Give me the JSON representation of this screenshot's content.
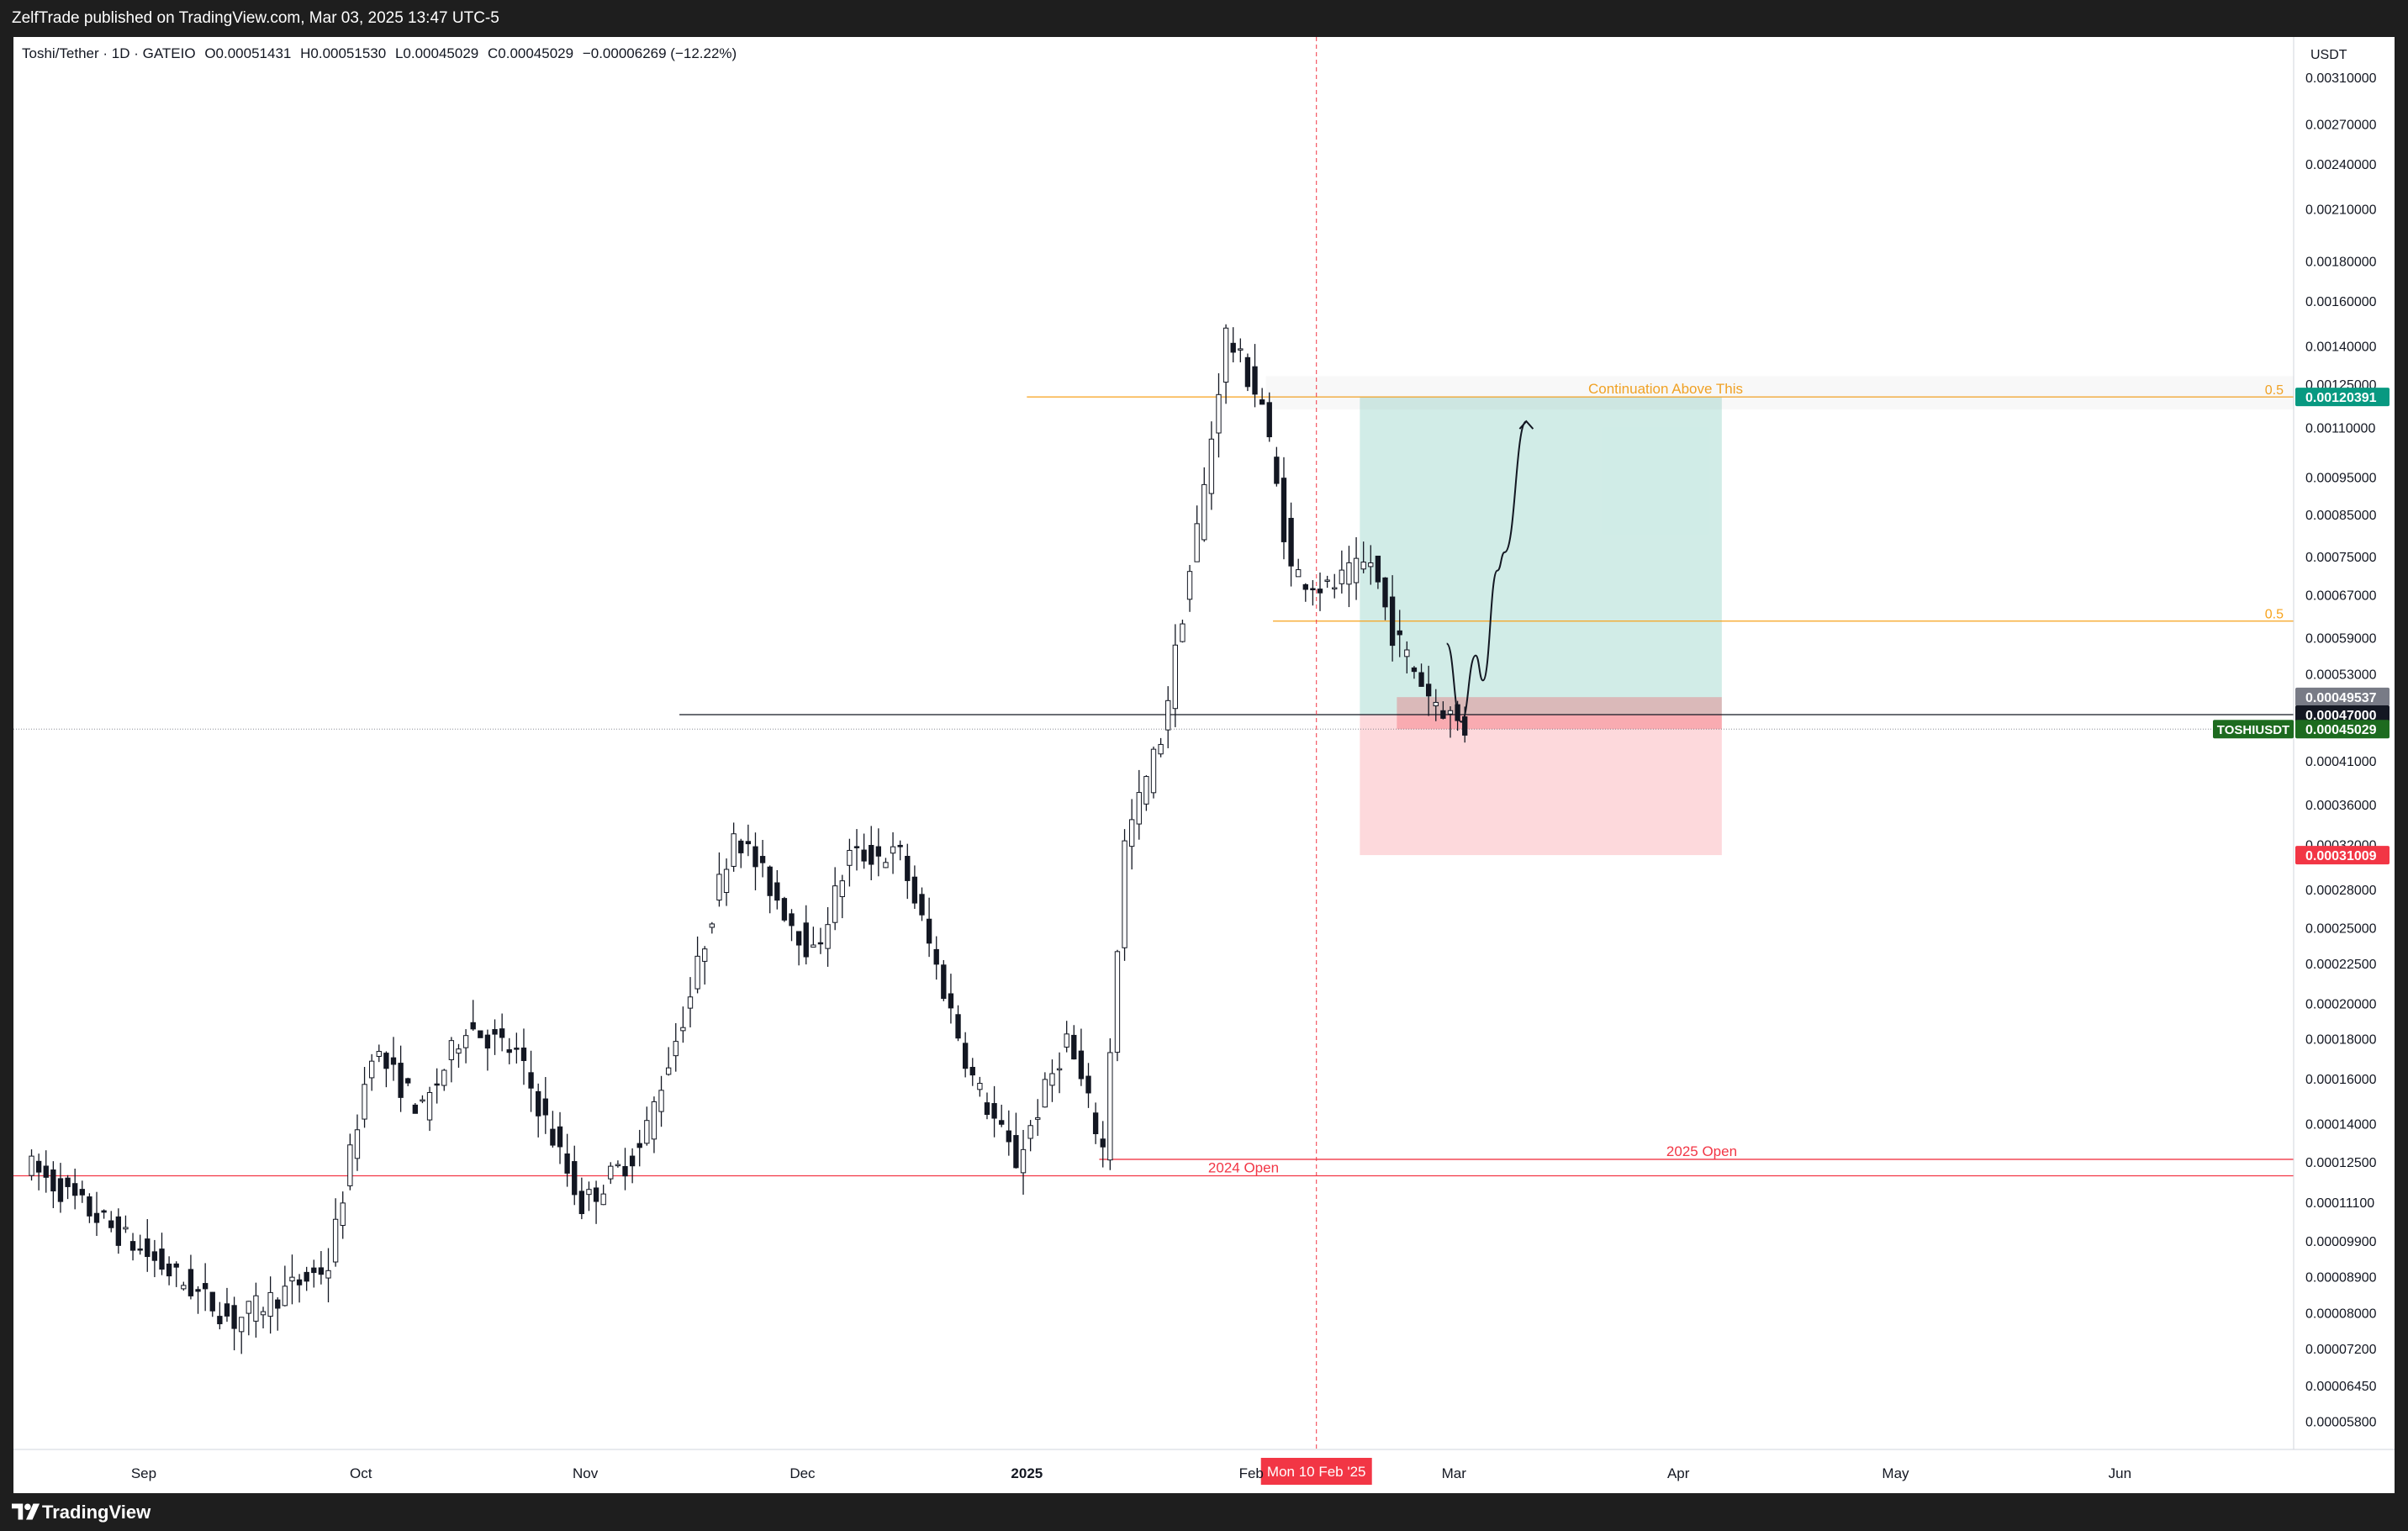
{
  "header": {
    "published": "ZelfTrade published on TradingView.com, Mar 03, 2025 13:47 UTC-5"
  },
  "footer": {
    "brand": "TradingView",
    "logo_icon": "tradingview-logo-icon"
  },
  "legend": {
    "symbol": "Toshi/Tether · 1D · GATEIO",
    "o_label": "O",
    "o": "0.00051431",
    "h_label": "H",
    "h": "0.00051530",
    "l_label": "L",
    "l": "0.00045029",
    "c_label": "C",
    "c": "0.00045029",
    "change": "−0.00006269 (−12.22%)"
  },
  "chart_data": {
    "type": "candlestick",
    "currency": "USDT",
    "scale": "log",
    "ylim": [
      5e-05,
      0.00032
    ],
    "xlim": [
      "2024-08-14",
      "2025-06-25"
    ],
    "x_ticks": [
      {
        "date": "2024-09-01",
        "label": "Sep"
      },
      {
        "date": "2024-10-01",
        "label": "Oct"
      },
      {
        "date": "2024-11-01",
        "label": "Nov"
      },
      {
        "date": "2024-12-01",
        "label": "Dec"
      },
      {
        "date": "2025-01-01",
        "label": "2025",
        "bold": true
      },
      {
        "date": "2025-02-01",
        "label": "Feb"
      },
      {
        "date": "2025-03-01",
        "label": "Mar"
      },
      {
        "date": "2025-04-01",
        "label": "Apr"
      },
      {
        "date": "2025-05-01",
        "label": "May"
      },
      {
        "date": "2025-06-01",
        "label": "Jun"
      }
    ],
    "y_ticks": [
      "0.00310000",
      "0.00270000",
      "0.00240000",
      "0.00210000",
      "0.00180000",
      "0.00160000",
      "0.00140000",
      "0.00125000",
      "0.00110000",
      "0.00095000",
      "0.00085000",
      "0.00075000",
      "0.00067000",
      "0.00059000",
      "0.00053000",
      "0.00041000",
      "0.00036000",
      "0.00032000",
      "0.00028000",
      "0.00025000",
      "0.00022500",
      "0.00020000",
      "0.00018000",
      "0.00016000",
      "0.00014000",
      "0.00012500",
      "0.00011100",
      "0.00009900",
      "0.00008900",
      "0.00008000",
      "0.00007200",
      "0.00006450",
      "0.00005800"
    ],
    "anchors": [
      {
        "date": "2024-08-16",
        "value": 0.000125
      },
      {
        "date": "2024-09-14",
        "value": 7.8e-05
      },
      {
        "date": "2024-09-27",
        "value": 9.2e-05
      },
      {
        "date": "2024-10-03",
        "value": 0.000175
      },
      {
        "date": "2024-10-10",
        "value": 0.000145
      },
      {
        "date": "2024-10-16",
        "value": 0.000188
      },
      {
        "date": "2024-10-23",
        "value": 0.000172
      },
      {
        "date": "2024-11-01",
        "value": 0.00011
      },
      {
        "date": "2024-11-09",
        "value": 0.00013
      },
      {
        "date": "2024-11-16",
        "value": 0.000205
      },
      {
        "date": "2024-11-22",
        "value": 0.000335
      },
      {
        "date": "2024-12-03",
        "value": 0.00023
      },
      {
        "date": "2024-12-08",
        "value": 0.00031
      },
      {
        "date": "2024-12-15",
        "value": 0.00031
      },
      {
        "date": "2024-12-25",
        "value": 0.00016
      },
      {
        "date": "2024-12-31",
        "value": 0.000125
      },
      {
        "date": "2025-01-07",
        "value": 0.00018
      },
      {
        "date": "2025-01-12",
        "value": 0.00013
      },
      {
        "date": "2025-01-15",
        "value": 0.00032
      },
      {
        "date": "2025-01-20",
        "value": 0.00044
      },
      {
        "date": "2025-01-26",
        "value": 0.00092
      },
      {
        "date": "2025-01-29",
        "value": 0.00145
      },
      {
        "date": "2025-02-03",
        "value": 0.00118
      },
      {
        "date": "2025-02-07",
        "value": 0.00072
      },
      {
        "date": "2025-02-12",
        "value": 0.00068
      },
      {
        "date": "2025-02-18",
        "value": 0.00074
      },
      {
        "date": "2025-02-21",
        "value": 0.0006
      },
      {
        "date": "2025-02-26",
        "value": 0.0005
      },
      {
        "date": "2025-03-03",
        "value": 0.00045
      }
    ],
    "horizontal_lines": [
      {
        "label": "Continuation Above This",
        "fib": "0.5",
        "value": 0.00120391,
        "from": "2025-01-01",
        "color": "#f7a21b"
      },
      {
        "label": "",
        "fib": "0.5",
        "value": 0.00062,
        "from": "2025-02-04",
        "color": "#f7a21b"
      },
      {
        "label": "",
        "value": 0.00047,
        "from": "2024-11-14",
        "color": "#131722"
      },
      {
        "label": "2025 Open",
        "value": 0.000126,
        "from": "2025-01-11",
        "color": "#f23645"
      },
      {
        "label": "2024 Open",
        "value": 0.00012,
        "from": "2024-08-14",
        "color": "#f23645"
      }
    ],
    "position": {
      "entry": 0.00047,
      "target": 0.00120391,
      "stop": 0.00031009,
      "from": "2025-02-16",
      "to": "2025-04-07"
    },
    "crosshair": {
      "date": "2025-02-10",
      "label": "Mon 10 Feb '25"
    },
    "price_labels": [
      {
        "value": 0.00120391,
        "text": "0.00120391",
        "color": "#089981"
      },
      {
        "value": 0.00049537,
        "text": "0.00049537",
        "color": "#787b86"
      },
      {
        "value": 0.00047,
        "text": "0.00047000",
        "color": "#131722"
      },
      {
        "value": 0.00045029,
        "text": "0.00045029",
        "color": "#1d6b1f",
        "tag": "TOSHIUSDT"
      },
      {
        "value": 0.00031009,
        "text": "0.00031009",
        "color": "#f23645"
      }
    ],
    "projection_path": [
      {
        "date": "2025-02-28",
        "value": 0.00058
      },
      {
        "date": "2025-03-02",
        "value": 0.00046
      },
      {
        "date": "2025-03-04",
        "value": 0.00056
      },
      {
        "date": "2025-03-05",
        "value": 0.00052
      },
      {
        "date": "2025-03-07",
        "value": 0.00072
      },
      {
        "date": "2025-03-08",
        "value": 0.00076
      },
      {
        "date": "2025-03-11",
        "value": 0.00112
      }
    ]
  }
}
